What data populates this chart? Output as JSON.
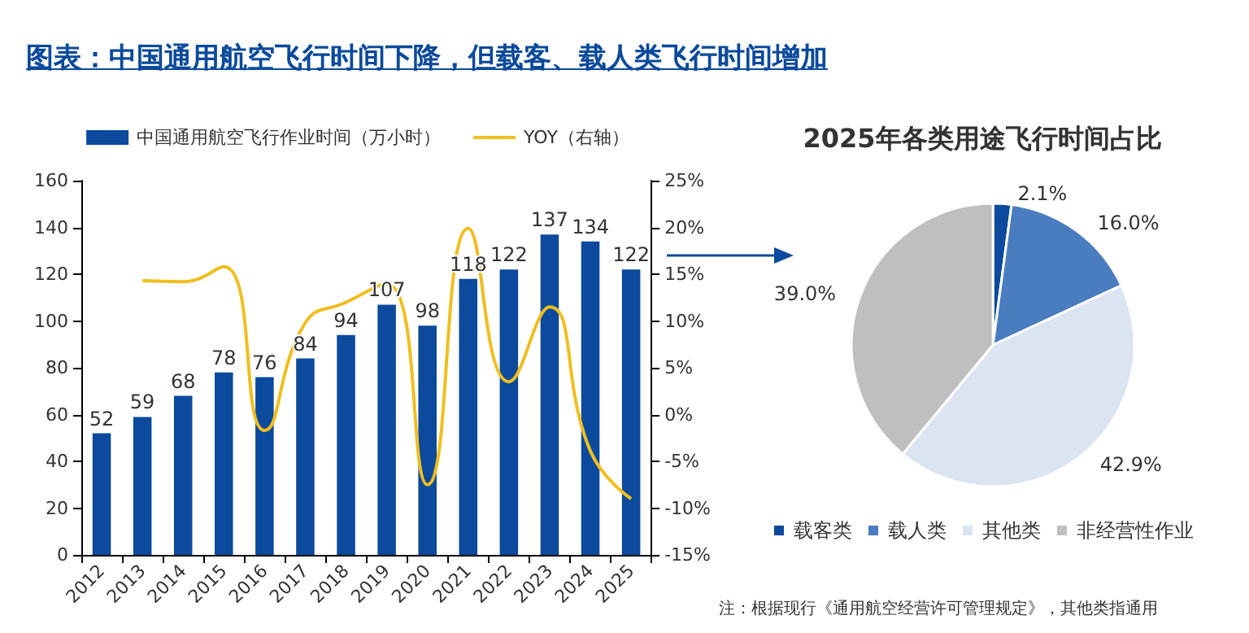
{
  "chart_data": [
    {
      "type": "bar",
      "title": "图表：中国通用航空飞行时间下降，但载客、载人类飞行时间增加",
      "categories": [
        "2012",
        "2013",
        "2014",
        "2015",
        "2016",
        "2017",
        "2018",
        "2019",
        "2020",
        "2021",
        "2022",
        "2023",
        "2024",
        "2025"
      ],
      "series": [
        {
          "name": "中国通用航空飞行作业时间（万小时）",
          "type": "bar",
          "color": "#0b4a9c",
          "data_labels": true,
          "values": [
            52,
            59,
            68,
            78,
            76,
            84,
            94,
            107,
            98,
            118,
            122,
            137,
            134,
            122
          ]
        },
        {
          "name": "YOY（右轴）",
          "type": "line",
          "axis": "y2",
          "color": "#f0be1e",
          "marker": "none",
          "values": [
            null,
            14.3,
            14.2,
            15.8,
            -1.7,
            9.8,
            12.0,
            14.0,
            -7.5,
            19.9,
            3.5,
            11.5,
            -3.9,
            -9.0
          ]
        }
      ],
      "ylim": [
        0,
        160
      ],
      "yticks": [
        0,
        20,
        40,
        60,
        80,
        100,
        120,
        140,
        160
      ],
      "y2lim": [
        -15,
        25
      ],
      "y2ticks": [
        {
          "value": -15,
          "label": "-15%"
        },
        {
          "value": -10,
          "label": "-10%"
        },
        {
          "value": -5,
          "label": "-5%"
        },
        {
          "value": 0,
          "label": "0%"
        },
        {
          "value": 5,
          "label": "5%"
        },
        {
          "value": 10,
          "label": "10%"
        },
        {
          "value": 15,
          "label": "15%"
        },
        {
          "value": 20,
          "label": "20%"
        },
        {
          "value": 25,
          "label": "25%"
        }
      ],
      "grid": false,
      "legend": "top"
    },
    {
      "type": "pie",
      "title": "2025年各类用途飞行时间占比",
      "categories": [
        "载客类",
        "载人类",
        "其他类",
        "非经营性作业"
      ],
      "values": [
        2.1,
        16.0,
        42.9,
        39.0
      ],
      "value_labels": [
        "2.1%",
        "16.0%",
        "42.9%",
        "39.0%"
      ],
      "colors": [
        "#0b4a9c",
        "#4a7dc0",
        "#dbe4f1",
        "#bfbfbf"
      ],
      "legend": "bottom",
      "annotations": [
        "注：根据现行《通用航空经营许可管理规定》，其他类指通用"
      ]
    }
  ]
}
